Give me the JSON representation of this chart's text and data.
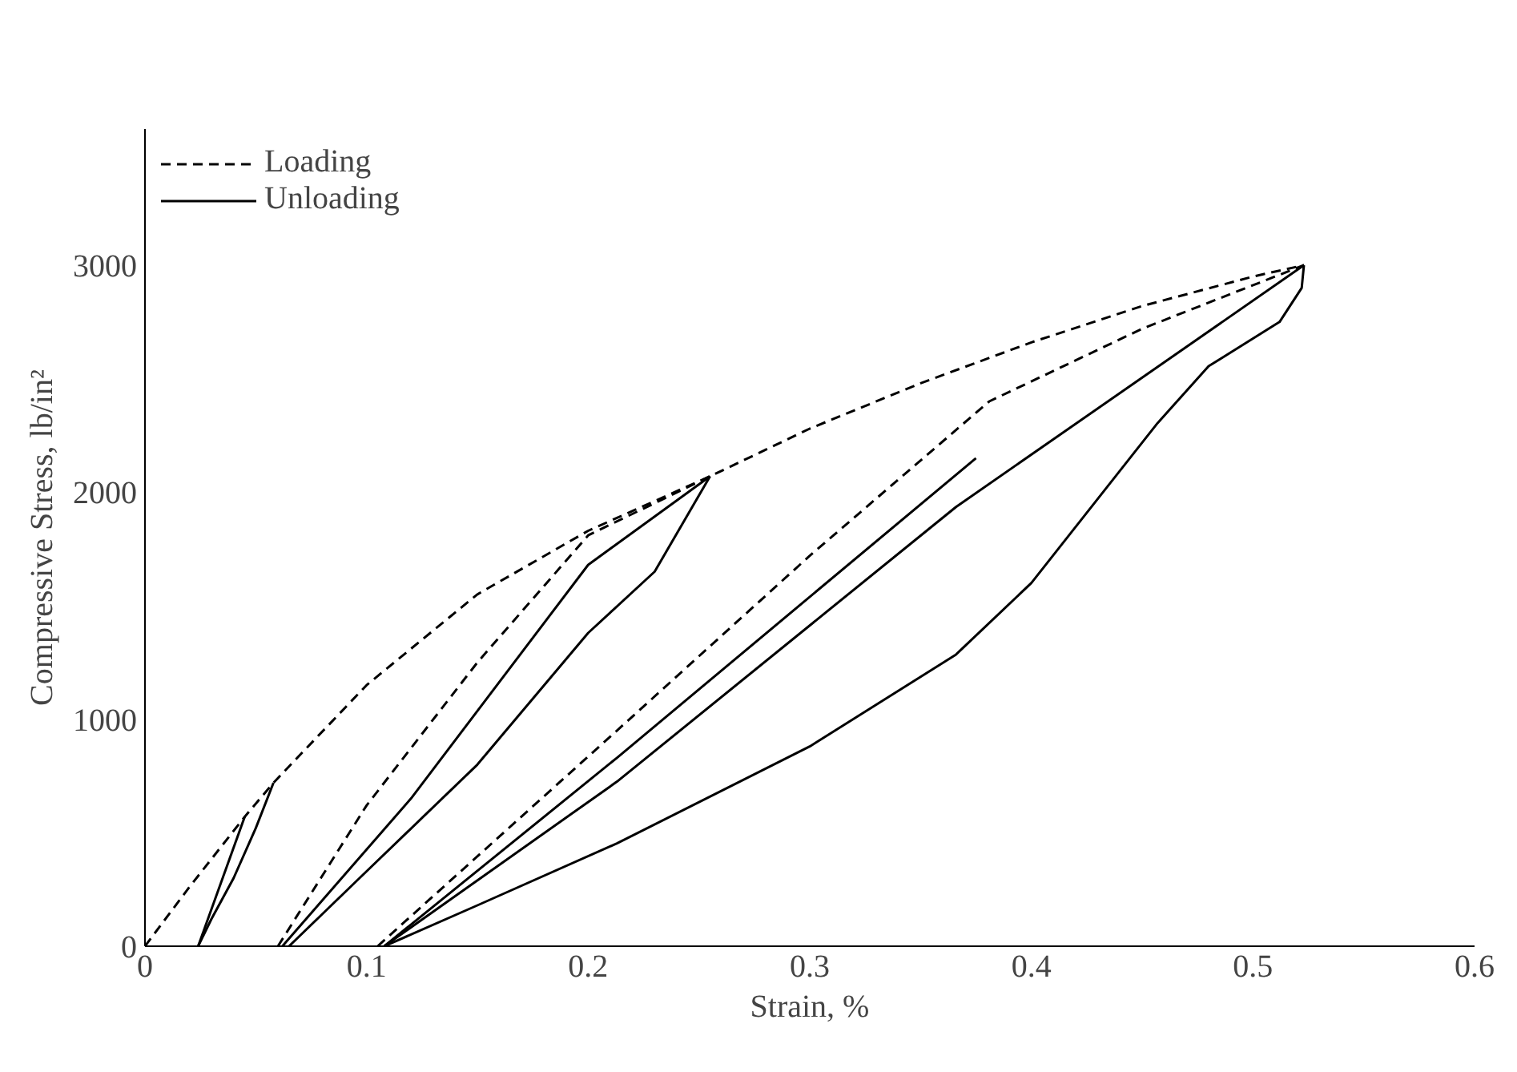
{
  "chart_data": {
    "type": "line",
    "xlabel": "Strain, %",
    "ylabel": "Compressive Stress, lb/in²",
    "xlim": [
      0,
      0.6
    ],
    "ylim": [
      0,
      3600
    ],
    "xticks": [
      0,
      0.1,
      0.2,
      0.3,
      0.4,
      0.5,
      0.6
    ],
    "yticks": [
      0,
      1000,
      2000,
      3000
    ],
    "grid": false,
    "legend": "top left",
    "marker": "none",
    "series": [
      {
        "name": "Loading",
        "color": "#000000",
        "line_style": "dashed",
        "x": [
          0,
          0.02,
          0.045,
          0.058,
          0.1,
          0.15,
          0.2,
          0.255,
          0.3,
          0.35,
          0.4,
          0.45,
          0.5,
          0.523
        ],
        "values": [
          0,
          260,
          570,
          720,
          1150,
          1550,
          1830,
          2070,
          2280,
          2480,
          2660,
          2820,
          2950,
          3000
        ]
      },
      {
        "color": "#000000",
        "line_style": "dashed",
        "x": [
          0.06,
          0.1,
          0.15,
          0.2,
          0.255
        ],
        "values": [
          0,
          620,
          1250,
          1810,
          2070
        ]
      },
      {
        "color": "#000000",
        "line_style": "dashed",
        "x": [
          0.105,
          0.213,
          0.3,
          0.381,
          0.45,
          0.523
        ],
        "values": [
          0,
          950,
          1720,
          2400,
          2720,
          3000
        ]
      },
      {
        "name": "Unloading",
        "color": "#000000",
        "line_style": "solid",
        "x": [
          0.058,
          0.05,
          0.04,
          0.03,
          0.024
        ],
        "values": [
          720,
          520,
          300,
          120,
          0
        ]
      },
      {
        "color": "#000000",
        "line_style": "solid",
        "x": [
          0.024,
          0.045
        ],
        "values": [
          0,
          570
        ]
      },
      {
        "color": "#000000",
        "line_style": "solid",
        "x": [
          0.062,
          0.12,
          0.2,
          0.255
        ],
        "values": [
          0,
          650,
          1680,
          2070
        ]
      },
      {
        "color": "#000000",
        "line_style": "solid",
        "x": [
          0.255,
          0.23,
          0.2,
          0.15,
          0.1,
          0.065
        ],
        "values": [
          2070,
          1650,
          1380,
          800,
          330,
          0
        ]
      },
      {
        "color": "#000000",
        "line_style": "solid",
        "x": [
          0.108,
          0.213,
          0.375
        ],
        "values": [
          0,
          830,
          2150
        ]
      },
      {
        "color": "#000000",
        "line_style": "solid",
        "x": [
          0.108,
          0.213,
          0.366,
          0.523
        ],
        "values": [
          0,
          725,
          1935,
          3000
        ]
      },
      {
        "color": "#000000",
        "line_style": "solid",
        "x": [
          0.523,
          0.522,
          0.512,
          0.48,
          0.457,
          0.4,
          0.366,
          0.3,
          0.213,
          0.15,
          0.108
        ],
        "values": [
          3000,
          2900,
          2750,
          2555,
          2305,
          1600,
          1285,
          880,
          453,
          180,
          0
        ]
      }
    ]
  }
}
